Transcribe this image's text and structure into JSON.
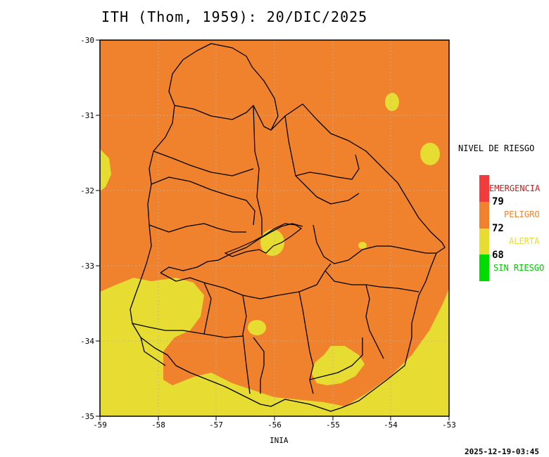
{
  "title": "ITH (Thom, 1959): 20/DIC/2025",
  "axes": {
    "x_ticks": [
      "-59",
      "-58",
      "-57",
      "-56",
      "-55",
      "-54",
      "-53"
    ],
    "y_ticks": [
      "-30",
      "-31",
      "-32",
      "-33",
      "-34",
      "-35"
    ]
  },
  "legend": {
    "title": "NIVEL DE RIESGO",
    "levels": [
      {
        "label": "EMERGENCIA",
        "color": "#f03c3c"
      },
      {
        "label": "PELIGRO",
        "color": "#f0822d"
      },
      {
        "label": "ALERTA",
        "color": "#e6dc32"
      },
      {
        "label": "SIN RIESGO",
        "color": "#00dc00"
      }
    ],
    "thresholds": [
      "79",
      "72",
      "68"
    ]
  },
  "colors": {
    "peligro": "#f0822d",
    "alerta": "#e6dc32",
    "emergencia": "#f03c3c",
    "sin_riesgo": "#00dc00",
    "emergencia_text": "#c81e1e",
    "peligro_text": "#f0822d",
    "alerta_text": "#e6dc32",
    "sin_riesgo_text": "#00c800"
  },
  "credit": "INIA",
  "timestamp": "2025-12-19-03:45"
}
